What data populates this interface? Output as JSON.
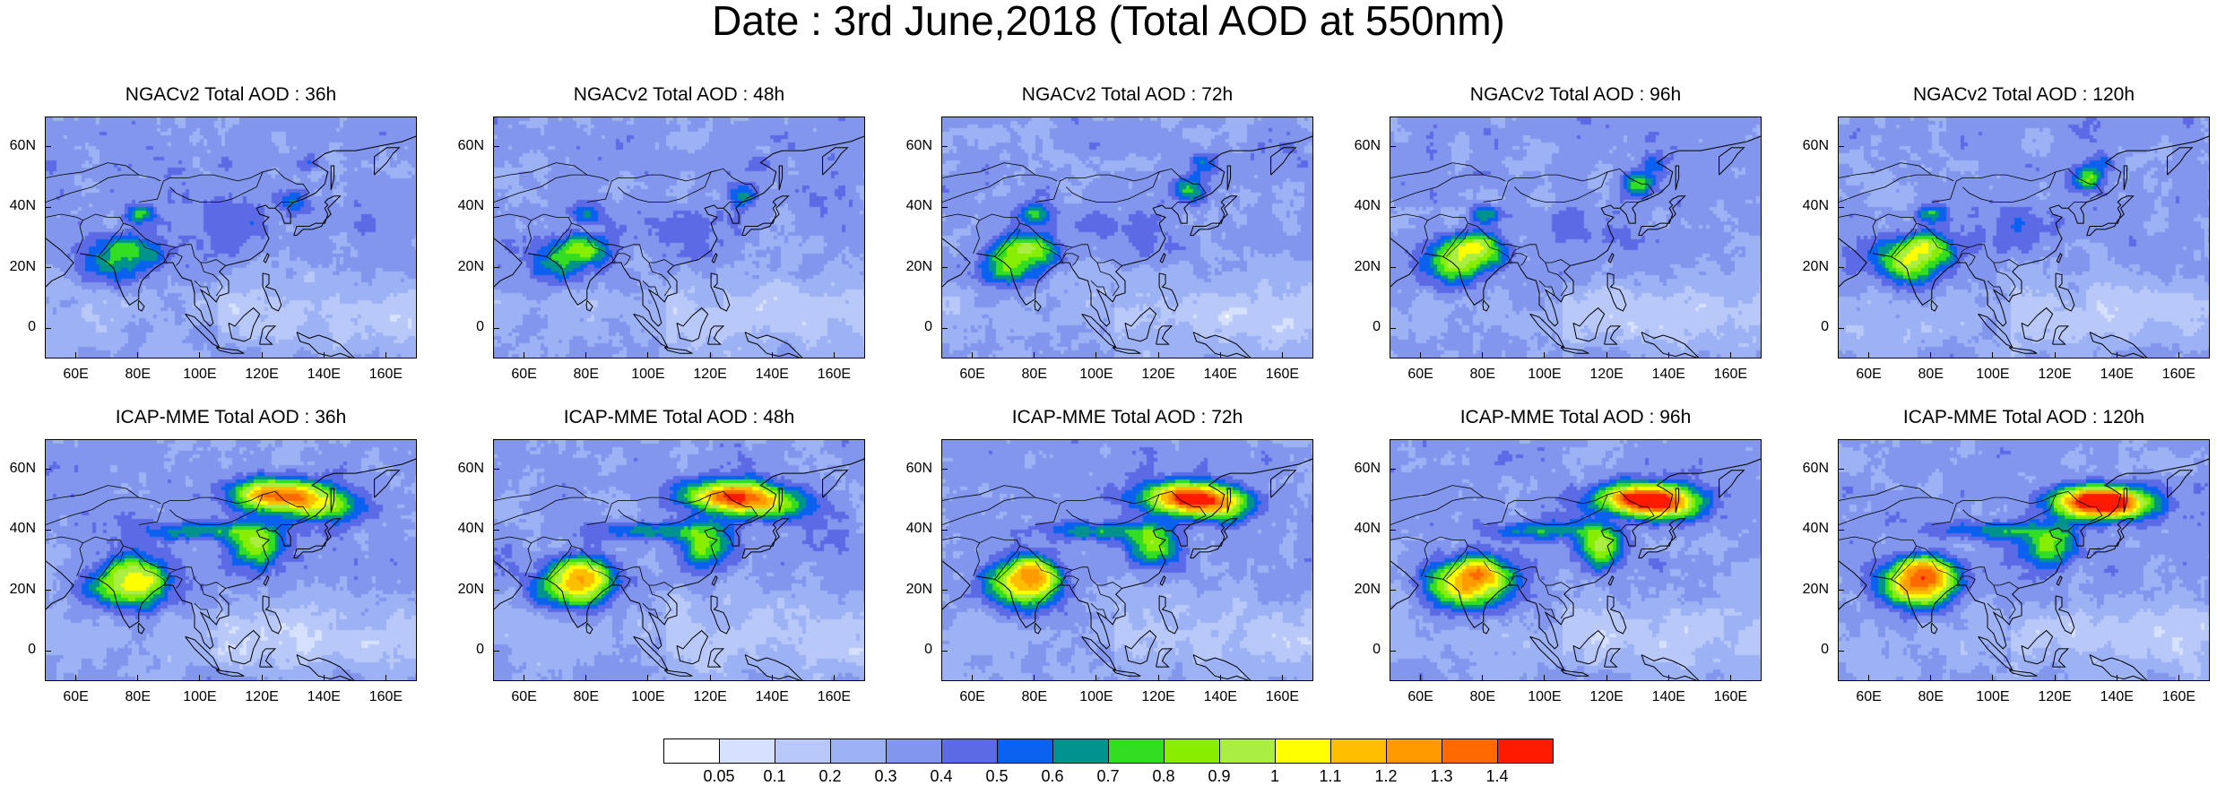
{
  "title": "Date : 3rd June,2018 (Total AOD at 550nm)",
  "rows": [
    {
      "model": "NGACv2",
      "panels": [
        {
          "title": "NGACv2 Total AOD : 36h",
          "lead_hours": 36
        },
        {
          "title": "NGACv2 Total AOD : 48h",
          "lead_hours": 48
        },
        {
          "title": "NGACv2 Total AOD : 72h",
          "lead_hours": 72
        },
        {
          "title": "NGACv2 Total AOD : 96h",
          "lead_hours": 96
        },
        {
          "title": "NGACv2 Total AOD : 120h",
          "lead_hours": 120
        }
      ]
    },
    {
      "model": "ICAP-MME",
      "panels": [
        {
          "title": "ICAP-MME Total AOD : 36h",
          "lead_hours": 36
        },
        {
          "title": "ICAP-MME Total AOD : 48h",
          "lead_hours": 48
        },
        {
          "title": "ICAP-MME Total AOD : 72h",
          "lead_hours": 72
        },
        {
          "title": "ICAP-MME Total AOD : 96h",
          "lead_hours": 96
        },
        {
          "title": "ICAP-MME Total AOD : 120h",
          "lead_hours": 120
        }
      ]
    }
  ],
  "map": {
    "lon_range": [
      50,
      170
    ],
    "lat_range": [
      -10,
      70
    ],
    "xticks": [
      {
        "value": 60,
        "label": "60E"
      },
      {
        "value": 80,
        "label": "80E"
      },
      {
        "value": 100,
        "label": "100E"
      },
      {
        "value": 120,
        "label": "120E"
      },
      {
        "value": 140,
        "label": "140E"
      },
      {
        "value": 160,
        "label": "160E"
      }
    ],
    "yticks": [
      {
        "value": 0,
        "label": "0"
      },
      {
        "value": 20,
        "label": "20N"
      },
      {
        "value": 40,
        "label": "40N"
      },
      {
        "value": 60,
        "label": "60N"
      }
    ]
  },
  "colorbar": {
    "levels": [
      "0.05",
      "0.1",
      "0.2",
      "0.3",
      "0.4",
      "0.5",
      "0.6",
      "0.7",
      "0.8",
      "0.9",
      "1",
      "1.1",
      "1.2",
      "1.3",
      "1.4"
    ],
    "colors": [
      "#ffffff",
      "#d6e0ff",
      "#b8c8f8",
      "#9db2f5",
      "#8296ee",
      "#5d6ae6",
      "#0a61f0",
      "#00928c",
      "#33dd22",
      "#88ee00",
      "#aaee44",
      "#ffff00",
      "#ffbe00",
      "#ff9b00",
      "#ff6a00",
      "#ff1a00"
    ]
  }
}
